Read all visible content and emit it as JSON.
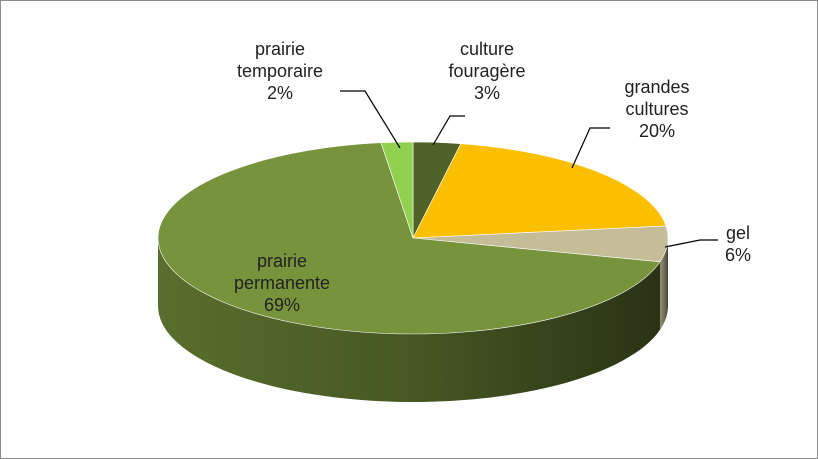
{
  "chart_data": {
    "type": "pie3d",
    "categories": [
      "culture fouragère",
      "grandes cultures",
      "gel",
      "prairie permanente",
      "prairie temporaire"
    ],
    "values": [
      3,
      20,
      6,
      69,
      2
    ],
    "value_labels": [
      "3%",
      "20%",
      "6%",
      "69%",
      "2%"
    ],
    "colors": [
      "#4f6228",
      "#fac000",
      "#c4bd97",
      "#77933c",
      "#92d050"
    ]
  }
}
